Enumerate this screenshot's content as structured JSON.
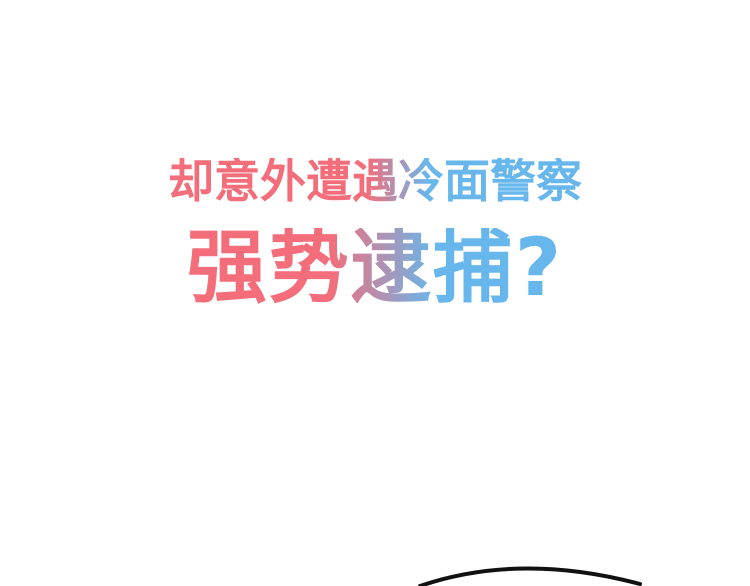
{
  "headline": {
    "line1": "却意外遭遇冷面警察",
    "line2": "强势逮捕?"
  },
  "colors": {
    "pink": "#f36e7a",
    "blue": "#68b7ec",
    "outline": "#111111",
    "background": "#ffffff"
  }
}
